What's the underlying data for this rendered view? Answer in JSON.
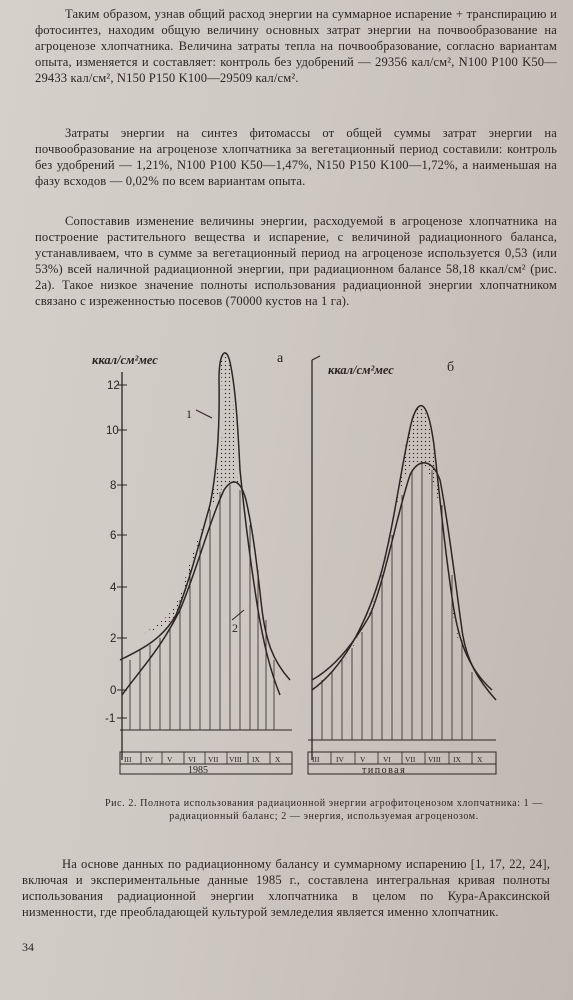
{
  "paragraphs": [
    "Таким образом, узнав общий расход энергии на суммарное испарение + транспирацию и фотосинтез, находим общую величину основных затрат энергии на почвообразование на агроценозе хлопчатника. Величина затраты тепла на почвообразование, согласно вариантам опыта, изменяется и составляет: контроль без удобрений — 29356 кал/см², N100 P100 K50—29433 кал/см², N150 P150 K100—29509 кал/см².",
    "Затраты энергии на синтез фитомассы от общей суммы затрат энергии на почвообразование на агроценозе хлопчатника за вегетационный период составили: контроль без удобрений — 1,21%, N100 P100 K50—1,47%, N150 P150 K100—1,72%, а наименьшая на фазу всходов — 0,02% по всем вариантам опыта.",
    "Сопоставив изменение величины энергии, расходуемой в агроценозе хлопчатника на построение растительного вещества и испарение, с величиной радиационного баланса, устанавливаем, что в сумме за вегетационный период на агроценозе используется 0,53 (или 53%) всей наличной радиационной энергии, при радиационном балансе 58,18 ккал/см² (рис. 2а). Такое низкое значение полноты использования радиационной энергии хлопчатником связано с изреженностью посевов (70000 кустов на 1 га)."
  ],
  "figure": {
    "panel_a": {
      "label": "а",
      "axis_unit": "ккал/см²мес",
      "y_ticks": [
        "12",
        "10",
        "8",
        "6",
        "4",
        "2",
        "0",
        "-1"
      ],
      "curve_labels": [
        "1",
        "2"
      ],
      "months": [
        "III",
        "IV",
        "V",
        "VI",
        "VII",
        "VIII",
        "IX",
        "X"
      ],
      "year": "1985"
    },
    "panel_b": {
      "label": "б",
      "axis_unit": "ккал/см²мес",
      "months": [
        "III",
        "IV",
        "V",
        "VI",
        "VII",
        "VIII",
        "IX",
        "X"
      ],
      "year": "типовая"
    }
  },
  "caption": "Рис. 2. Полнота использования радиационной энергии агрофитоценозом хлопчатника: 1 — радиационный баланс; 2 — энергия, используемая агроценозом.",
  "closing_paragraph": "На основе данных по радиационному балансу и суммарному испарению [1, 17, 22, 24], включая и экспериментальные данные 1985 г., составлена интегральная кривая полноты использования радиационной энергии хлопчатника в целом по Кура-Араксинской низменности, где преобладающей культурой земледелия является именно хлопчатник.",
  "page_number": "34"
}
